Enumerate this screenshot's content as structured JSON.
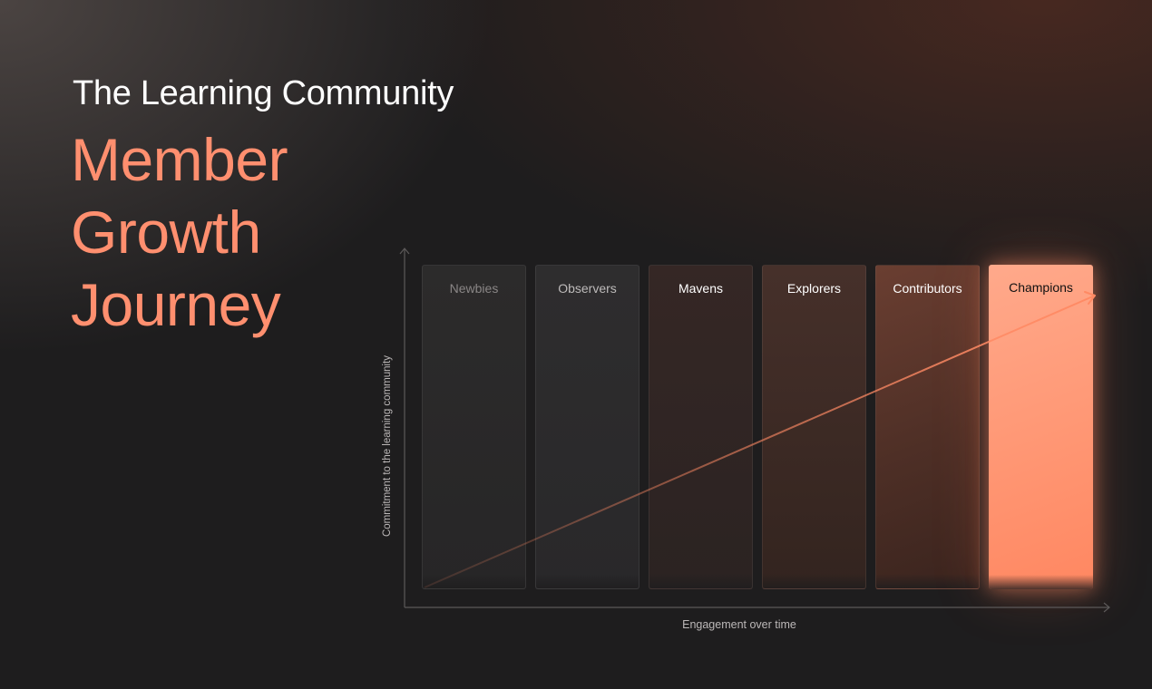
{
  "header": {
    "subtitle": "The Learning Community",
    "title_lines": [
      "Member",
      "Growth",
      "Journey"
    ]
  },
  "diagram": {
    "stages": [
      {
        "label": "Newbies"
      },
      {
        "label": "Observers"
      },
      {
        "label": "Mavens"
      },
      {
        "label": "Explorers"
      },
      {
        "label": "Contributors"
      },
      {
        "label": "Champions"
      }
    ],
    "y_axis_label": "Commitment to the learning community",
    "x_axis_label": "Engagement over time"
  },
  "colors": {
    "accent": "#ff8f6f",
    "background": "#1e1d1e",
    "highlight_stage": "#ff9a78"
  }
}
